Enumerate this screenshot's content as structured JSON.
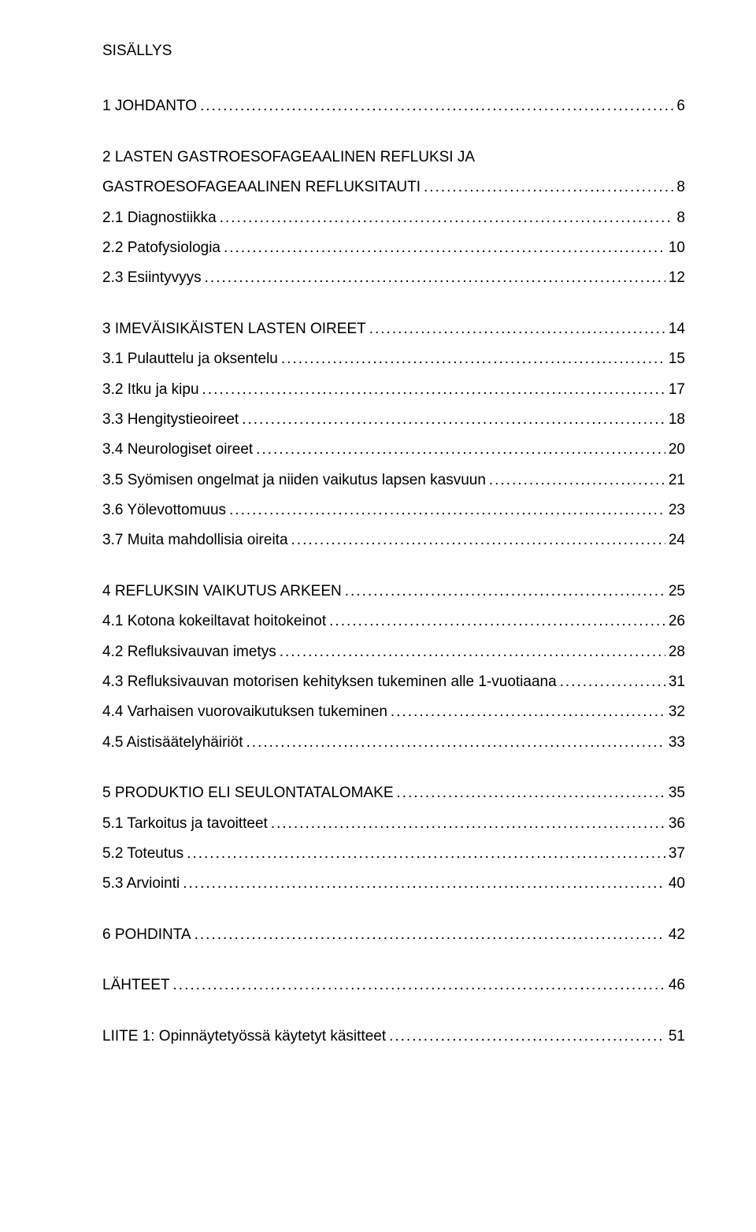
{
  "title": "SISÄLLYS",
  "entries": [
    {
      "indent": 0,
      "label": "1 JOHDANTO",
      "page": "6",
      "gapAfter": true
    },
    {
      "indent": 0,
      "label": "2 LASTEN GASTROESOFAGEAALINEN REFLUKSI JA",
      "page": null,
      "gapAfter": false,
      "noLeader": true
    },
    {
      "indent": 0,
      "label": "GASTROESOFAGEAALINEN REFLUKSITAUTI",
      "page": "8",
      "gapAfter": false
    },
    {
      "indent": 1,
      "label": "2.1 Diagnostiikka",
      "page": "8",
      "gapAfter": false
    },
    {
      "indent": 1,
      "label": "2.2 Patofysiologia",
      "page": "10",
      "gapAfter": false
    },
    {
      "indent": 1,
      "label": "2.3 Esiintyvyys",
      "page": "12",
      "gapAfter": true
    },
    {
      "indent": 0,
      "label": "3 IMEVÄISIKÄISTEN LASTEN OIREET",
      "page": "14",
      "gapAfter": false
    },
    {
      "indent": 1,
      "label": "3.1 Pulauttelu ja oksentelu",
      "page": "15",
      "gapAfter": false
    },
    {
      "indent": 1,
      "label": "3.2 Itku ja kipu",
      "page": "17",
      "gapAfter": false
    },
    {
      "indent": 1,
      "label": "3.3 Hengitystieoireet",
      "page": "18",
      "gapAfter": false
    },
    {
      "indent": 1,
      "label": "3.4 Neurologiset oireet",
      "page": "20",
      "gapAfter": false
    },
    {
      "indent": 1,
      "label": "3.5 Syömisen ongelmat ja niiden vaikutus lapsen kasvuun",
      "page": "21",
      "gapAfter": false
    },
    {
      "indent": 1,
      "label": "3.6 Yölevottomuus",
      "page": "23",
      "gapAfter": false
    },
    {
      "indent": 1,
      "label": "3.7 Muita mahdollisia oireita",
      "page": "24",
      "gapAfter": true
    },
    {
      "indent": 0,
      "label": "4 REFLUKSIN VAIKUTUS ARKEEN",
      "page": "25",
      "gapAfter": false
    },
    {
      "indent": 1,
      "label": "4.1 Kotona kokeiltavat hoitokeinot",
      "page": "26",
      "gapAfter": false
    },
    {
      "indent": 1,
      "label": "4.2 Refluksivauvan imetys",
      "page": "28",
      "gapAfter": false
    },
    {
      "indent": 1,
      "label": "4.3 Refluksivauvan motorisen kehityksen tukeminen alle 1-vuotiaana",
      "page": "31",
      "gapAfter": false
    },
    {
      "indent": 1,
      "label": "4.4 Varhaisen vuorovaikutuksen tukeminen",
      "page": "32",
      "gapAfter": false
    },
    {
      "indent": 1,
      "label": "4.5 Aistisäätelyhäiriöt",
      "page": "33",
      "gapAfter": true
    },
    {
      "indent": 0,
      "label": "5 PRODUKTIO ELI SEULONTATALOMAKE",
      "page": "35",
      "gapAfter": false
    },
    {
      "indent": 1,
      "label": "5.1 Tarkoitus ja tavoitteet",
      "page": "36",
      "gapAfter": false
    },
    {
      "indent": 1,
      "label": "5.2 Toteutus",
      "page": "37",
      "gapAfter": false
    },
    {
      "indent": 1,
      "label": "5.3 Arviointi",
      "page": "40",
      "gapAfter": true
    },
    {
      "indent": 0,
      "label": "6 POHDINTA",
      "page": "42",
      "gapAfter": true
    },
    {
      "indent": 0,
      "label": "LÄHTEET",
      "page": "46",
      "gapAfter": true
    },
    {
      "indent": 0,
      "label": "LIITE 1: Opinnäytetyössä käytetyt käsitteet",
      "page": "51",
      "gapAfter": false
    }
  ]
}
